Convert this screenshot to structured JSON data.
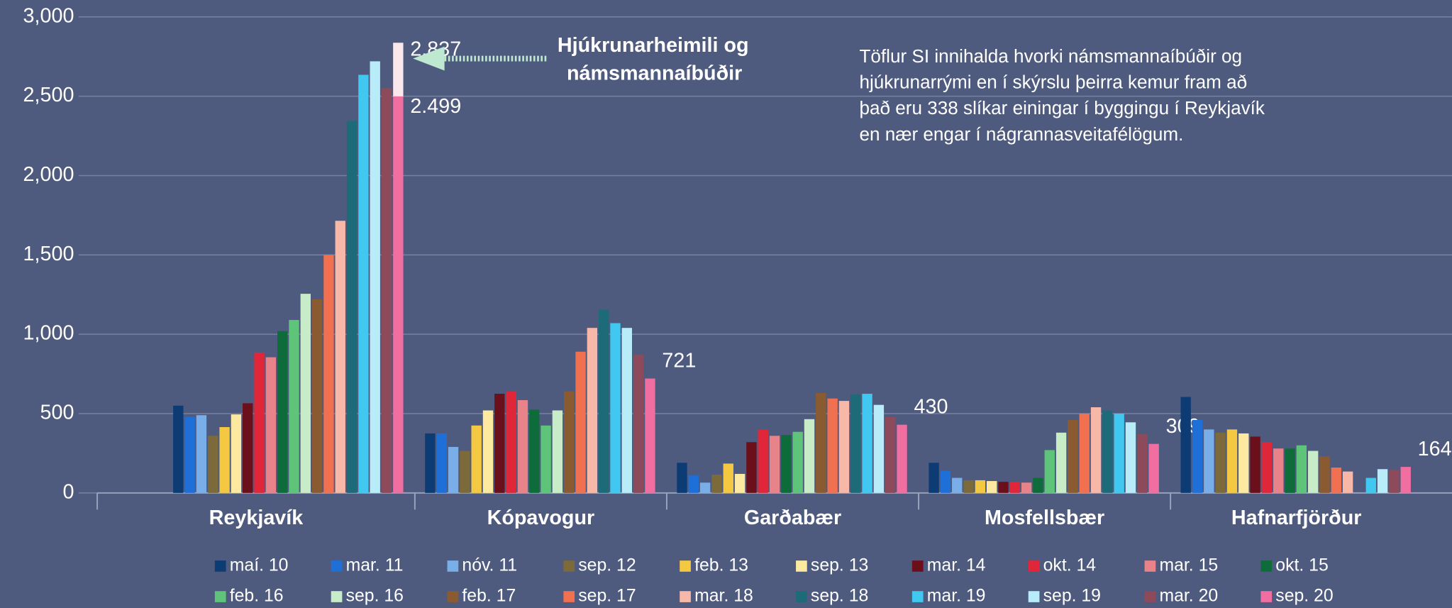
{
  "chart_data": {
    "type": "bar",
    "categories": [
      "Reykjavík",
      "Kópavogur",
      "Garðabær",
      "Mosfellsbær",
      "Hafnarfjörður"
    ],
    "series": [
      {
        "name": "maí. 10",
        "color": "#0d3b73",
        "values": [
          550,
          375,
          190,
          190,
          605
        ]
      },
      {
        "name": "mar. 11",
        "color": "#1f6fd8",
        "values": [
          480,
          375,
          110,
          140,
          460
        ]
      },
      {
        "name": "nóv. 11",
        "color": "#7aaee8",
        "values": [
          490,
          290,
          65,
          95,
          400
        ]
      },
      {
        "name": "sep. 12",
        "color": "#7d6a3a",
        "values": [
          360,
          265,
          115,
          80,
          380
        ]
      },
      {
        "name": "feb. 13",
        "color": "#f5c842",
        "values": [
          415,
          425,
          185,
          80,
          400
        ]
      },
      {
        "name": "sep. 13",
        "color": "#fde9a0",
        "values": [
          495,
          520,
          120,
          75,
          375
        ]
      },
      {
        "name": "mar. 14",
        "color": "#6b0f1a",
        "values": [
          565,
          625,
          320,
          70,
          355
        ]
      },
      {
        "name": "okt. 14",
        "color": "#e0273a",
        "values": [
          885,
          640,
          400,
          70,
          320
        ]
      },
      {
        "name": "mar. 15",
        "color": "#e8838a",
        "values": [
          855,
          585,
          360,
          65,
          280
        ]
      },
      {
        "name": "okt. 15",
        "color": "#0e6b3a",
        "values": [
          1020,
          525,
          365,
          95,
          280
        ]
      },
      {
        "name": "feb. 16",
        "color": "#5ec47a",
        "values": [
          1090,
          425,
          385,
          270,
          300
        ]
      },
      {
        "name": "sep. 16",
        "color": "#c8ecc8",
        "values": [
          1255,
          520,
          465,
          380,
          265
        ]
      },
      {
        "name": "feb. 17",
        "color": "#8a5a30",
        "values": [
          1220,
          640,
          630,
          460,
          230
        ]
      },
      {
        "name": "sep. 17",
        "color": "#f07050",
        "values": [
          1500,
          890,
          595,
          500,
          160
        ]
      },
      {
        "name": "mar. 18",
        "color": "#f8b8a8",
        "values": [
          1715,
          1040,
          580,
          540,
          135
        ]
      },
      {
        "name": "sep. 18",
        "color": "#1d6b78",
        "values": [
          2345,
          1155,
          620,
          520,
          null
        ]
      },
      {
        "name": "mar. 19",
        "color": "#40c8f0",
        "values": [
          2635,
          1070,
          625,
          500,
          95
        ]
      },
      {
        "name": "sep. 19",
        "color": "#b8ecf8",
        "values": [
          2720,
          1040,
          555,
          445,
          150
        ]
      },
      {
        "name": "mar. 20",
        "color": "#8c4a5a",
        "values": [
          2550,
          870,
          480,
          370,
          145
        ]
      },
      {
        "name": "sep. 20",
        "color": "#f06ea0",
        "values": [
          2499,
          721,
          430,
          309,
          164
        ],
        "value_labels": [
          "2.499",
          "721",
          "430",
          "309",
          "164"
        ]
      }
    ],
    "ylim": [
      0,
      3000
    ],
    "yticks": [
      0,
      500,
      {
        "value": 1000,
        "label": "1,000"
      },
      {
        "value": 1500,
        "label": "1,500"
      },
      {
        "value": 2000,
        "label": "2,000"
      },
      {
        "value": 2500,
        "label": "2,500"
      },
      {
        "value": 3000,
        "label": "3,000"
      }
    ],
    "grid": true,
    "highlight": {
      "value": 2837,
      "label": "2.837",
      "color": "#fbe8ec"
    },
    "callout": [
      "Hjúkrunarheimili og",
      "námsmannaíbúðir"
    ],
    "annotation": [
      "Töflur SI innihalda hvorki námsmannaíbúðir og",
      "hjúkrunarrými en í skýrslu þeirra kemur fram að",
      "það eru 338 slíkar einingar í byggingu í Reykjavík",
      "en nær engar í nágrannasveitafélögum."
    ]
  }
}
